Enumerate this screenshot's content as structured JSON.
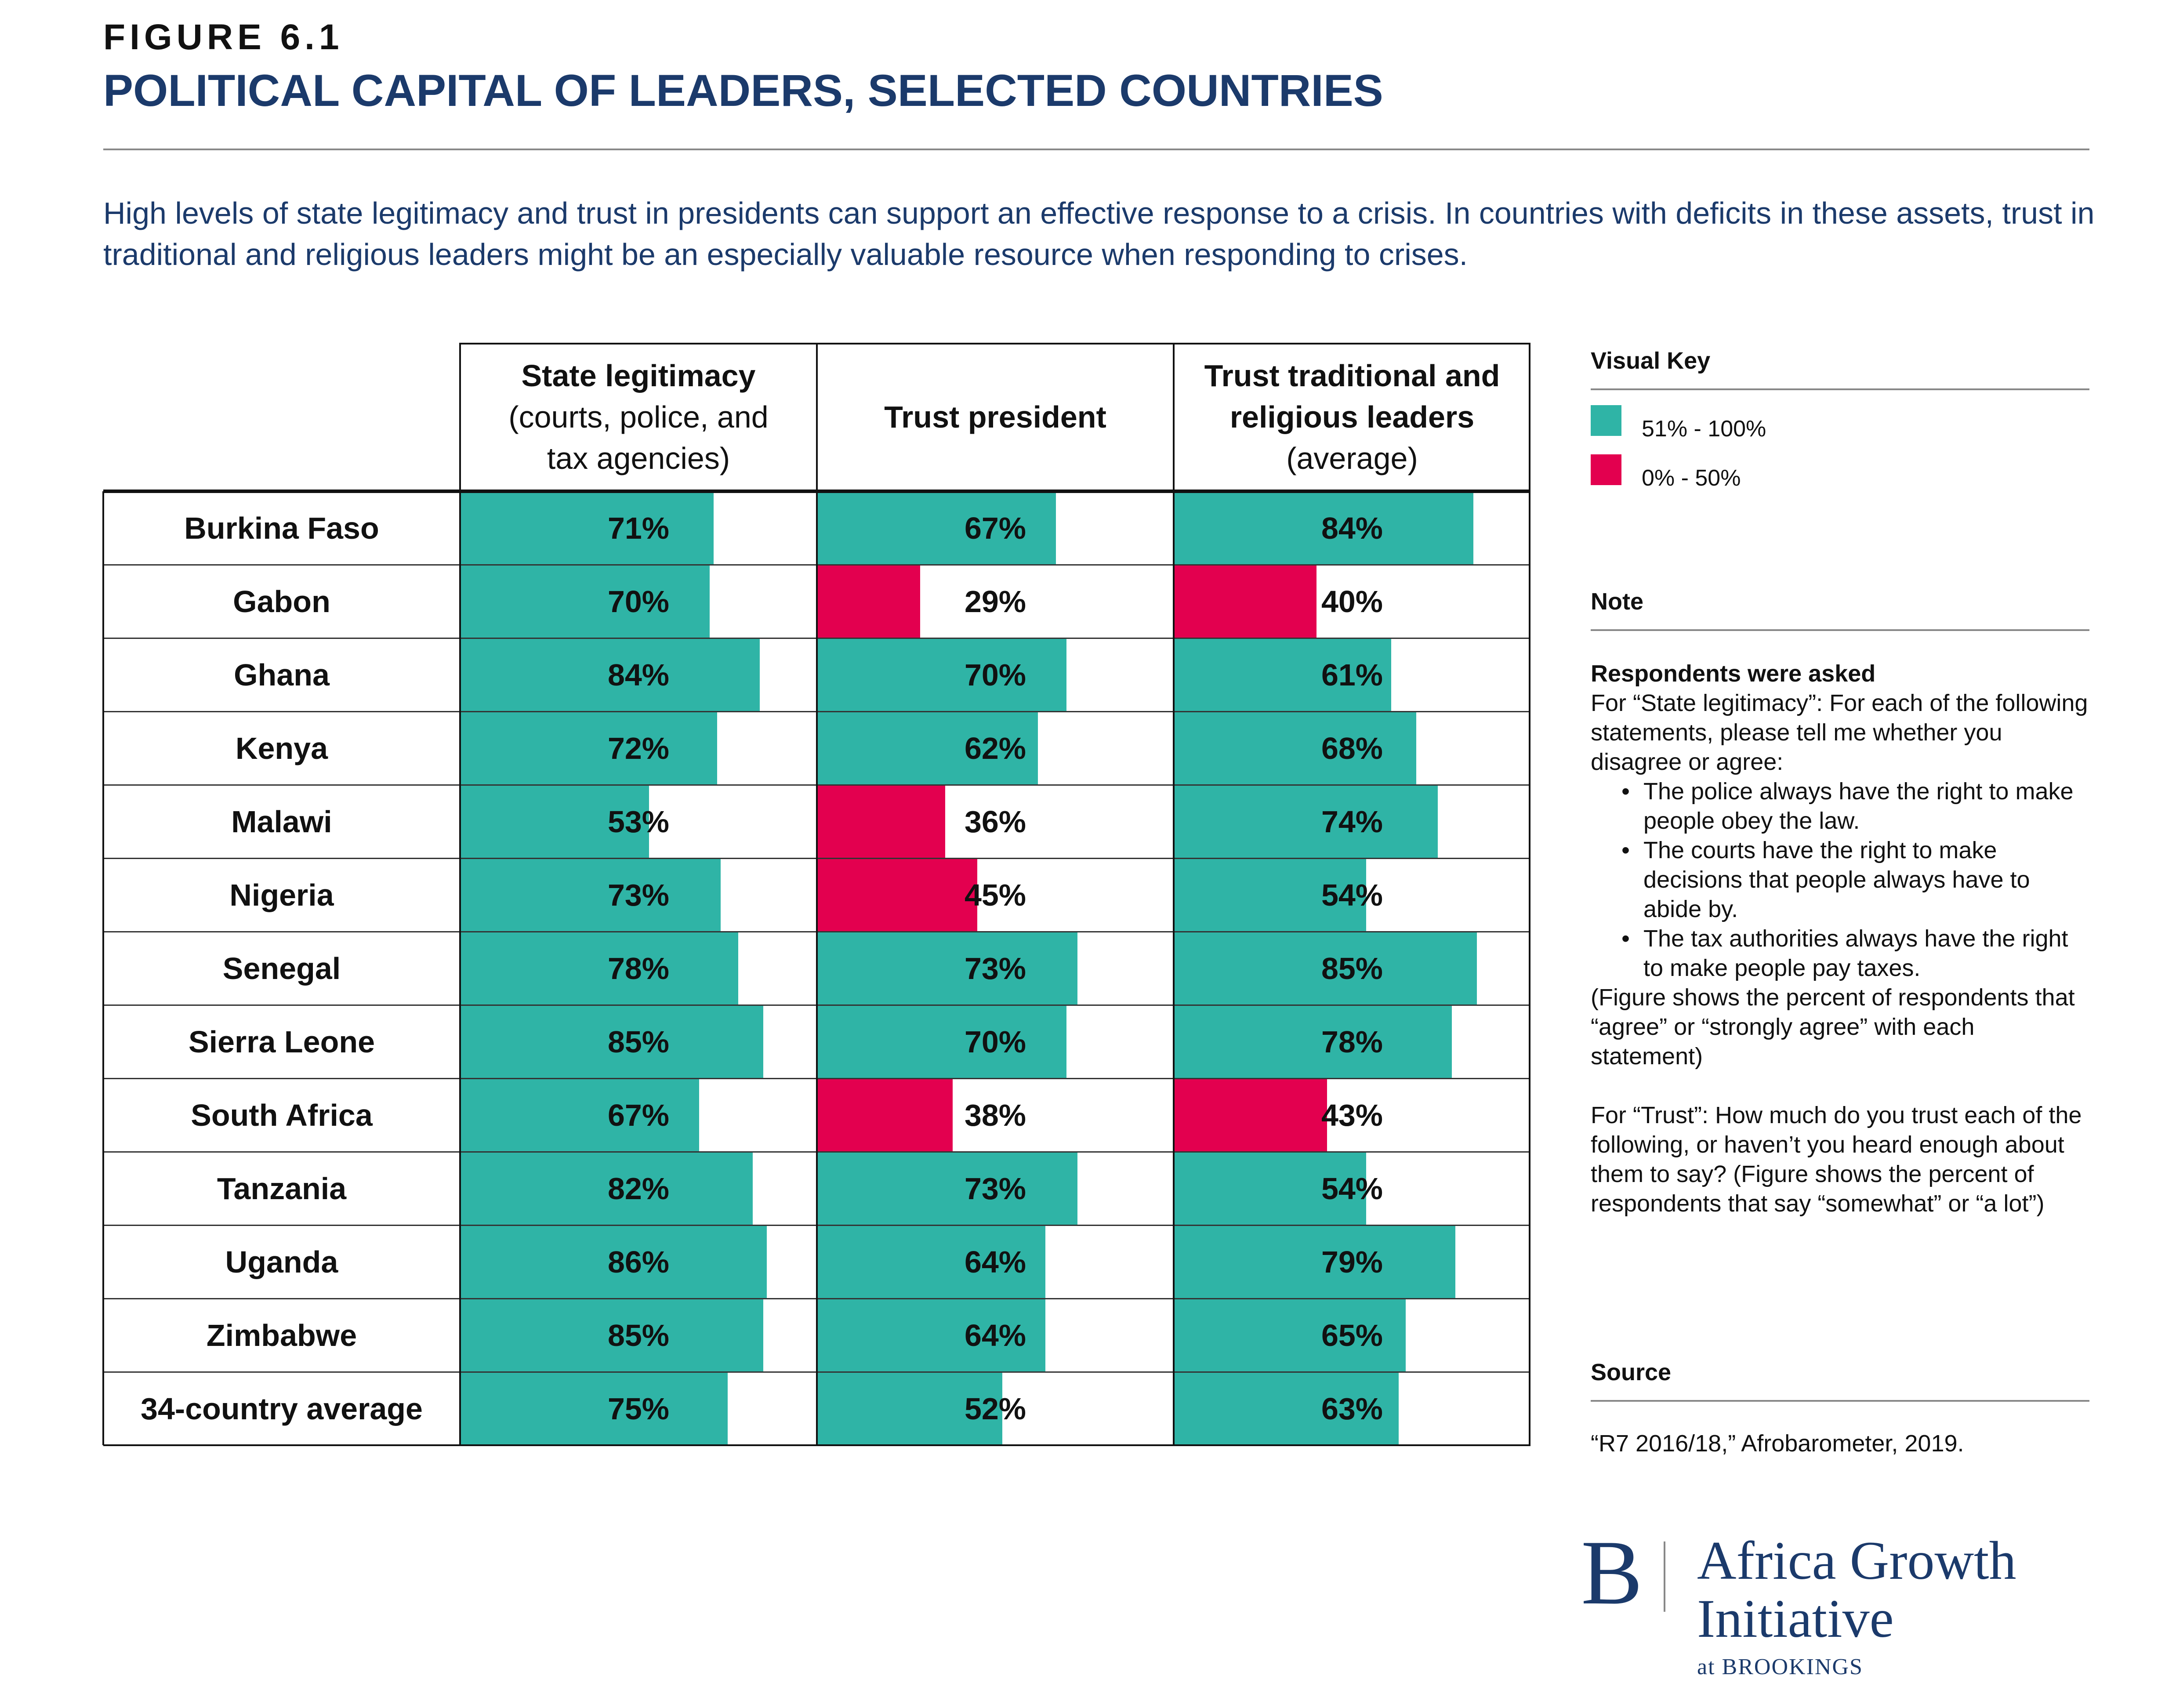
{
  "figure_label": "FIGURE 6.1",
  "title": "POLITICAL CAPITAL OF LEADERS, SELECTED COUNTRIES",
  "subtitle": "High levels of state legitimacy and trust in presidents can support an effective response to a crisis. In countries with deficits in these assets, trust in traditional and religious leaders might be an especially valuable resource when responding to crises.",
  "colors": {
    "high": "#2fb4a6",
    "low": "#e3004f",
    "title": "#1b3a6b"
  },
  "chart_data": {
    "type": "table",
    "columns": [
      {
        "bold": "State legitimacy",
        "rest": [
          "(courts, police, and",
          "tax agencies)"
        ]
      },
      {
        "bold": "Trust president",
        "rest": []
      },
      {
        "bold": "Trust traditional and religious leaders",
        "bold_lines": [
          "Trust traditional and",
          "religious leaders"
        ],
        "rest": [
          "(average)"
        ]
      }
    ],
    "rows": [
      {
        "country": "Burkina Faso",
        "values": [
          71,
          67,
          84
        ]
      },
      {
        "country": "Gabon",
        "values": [
          70,
          29,
          40
        ]
      },
      {
        "country": "Ghana",
        "values": [
          84,
          70,
          61
        ]
      },
      {
        "country": "Kenya",
        "values": [
          72,
          62,
          68
        ]
      },
      {
        "country": "Malawi",
        "values": [
          53,
          36,
          74
        ]
      },
      {
        "country": "Nigeria",
        "values": [
          73,
          45,
          54
        ]
      },
      {
        "country": "Senegal",
        "values": [
          78,
          73,
          85
        ]
      },
      {
        "country": "Sierra Leone",
        "values": [
          85,
          70,
          78
        ]
      },
      {
        "country": "South Africa",
        "values": [
          67,
          38,
          43
        ]
      },
      {
        "country": "Tanzania",
        "values": [
          82,
          73,
          54
        ]
      },
      {
        "country": "Uganda",
        "values": [
          86,
          64,
          79
        ]
      },
      {
        "country": "Zimbabwe",
        "values": [
          85,
          64,
          65
        ]
      },
      {
        "country": "34-country average",
        "values": [
          75,
          52,
          63
        ]
      }
    ],
    "value_suffix": "%",
    "threshold": 50,
    "scale_max": 100
  },
  "visual_key": {
    "heading": "Visual Key",
    "items": [
      {
        "label": "51% - 100%",
        "color": "#2fb4a6"
      },
      {
        "label": "0% - 50%",
        "color": "#e3004f"
      }
    ]
  },
  "note": {
    "heading": "Note",
    "asked": "Respondents were asked",
    "legit_intro": "For “State legitimacy”: For each of the following statements, please tell me whether you disagree or agree:",
    "bullets": [
      "The police always have the right to make people obey the law.",
      "The courts have the right to make decisions that people always have to abide by.",
      "The tax authorities always have the right to make people pay taxes."
    ],
    "legit_outro": "(Figure shows the percent of respondents that  “agree” or “strongly agree” with each statement)",
    "trust_text": "For “Trust”: How much do you trust each of the following, or haven’t you heard enough about them to say? (Figure shows the percent of respondents that  say “somewhat” or “a lot”)"
  },
  "source": {
    "heading": "Source",
    "text": "“R7 2016/18,” Afrobarometer, 2019."
  },
  "logo": {
    "mark": "B",
    "line1": "Africa Growth",
    "line2": "Initiative",
    "line3": "at BROOKINGS"
  }
}
